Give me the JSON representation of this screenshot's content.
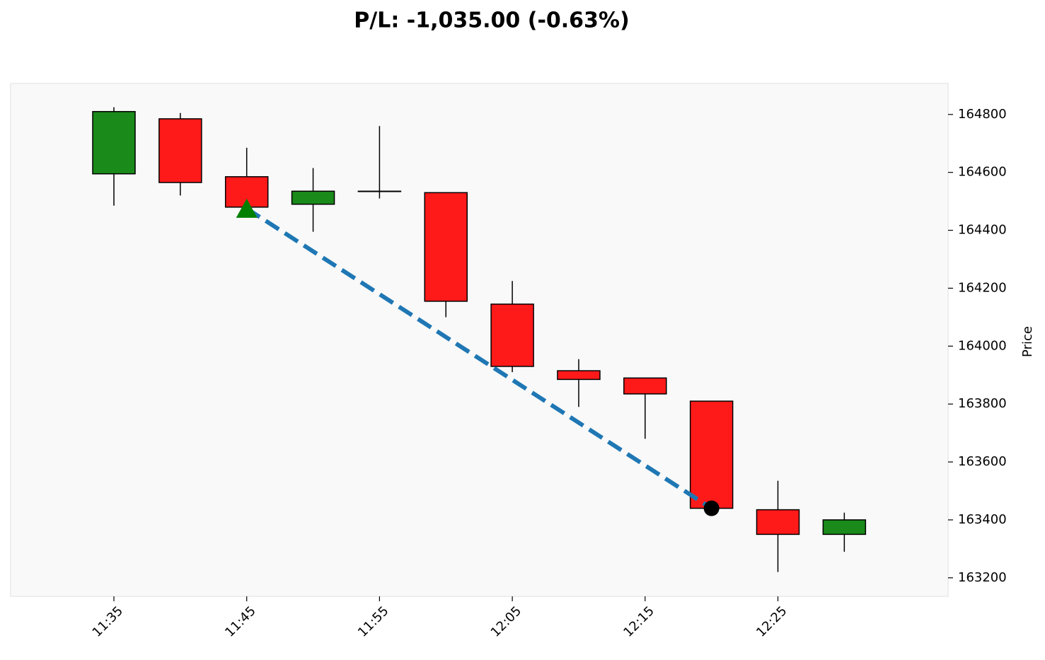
{
  "chart_data": {
    "type": "candlestick",
    "title": "P/L: -1,035.00 (-0.63%)",
    "y_label": "Price",
    "categories": [
      "11:35",
      null,
      "11:45",
      null,
      "11:55",
      null,
      "12:05",
      null,
      "12:15",
      null,
      "12:25",
      null
    ],
    "open": [
      164595,
      164785,
      164585,
      164490,
      164535,
      164530,
      164145,
      163915,
      163890,
      163810,
      163435,
      163350
    ],
    "high": [
      164825,
      164805,
      164685,
      164615,
      164760,
      164530,
      164225,
      163955,
      163890,
      163810,
      163535,
      163425
    ],
    "low": [
      164485,
      164520,
      164480,
      164395,
      164510,
      164100,
      163910,
      163790,
      163680,
      163440,
      163220,
      163290
    ],
    "close": [
      164810,
      164565,
      164480,
      164535,
      164535,
      164155,
      163930,
      163885,
      163835,
      163440,
      163350,
      163400
    ],
    "up_color": "#1a8a1a",
    "down_color": "#ff1a1a",
    "entry": {
      "at": 2,
      "price": 164475,
      "color": "#008000"
    },
    "exit": {
      "at": 9,
      "price": 163440,
      "color": "#000000"
    },
    "trade_line_color": "#1f77b4",
    "ylim": [
      163136,
      164907
    ],
    "yticks": [
      163200,
      163400,
      163600,
      163800,
      164000,
      164200,
      164400,
      164600,
      164800
    ]
  }
}
